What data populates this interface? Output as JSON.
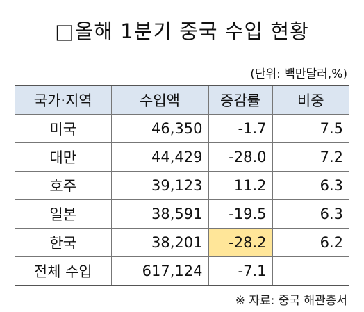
{
  "title": "□올해 1분기 중국 수입 현황",
  "unit_note": "(단위: 백만달러,%)",
  "table": {
    "header": [
      "국가·지역",
      "수입액",
      "증감률",
      "비중"
    ],
    "rows": [
      [
        "미국",
        "46,350",
        "-1.7",
        "7.5"
      ],
      [
        "대만",
        "44,429",
        "-28.0",
        "7.2"
      ],
      [
        "호주",
        "39,123",
        "11.2",
        "6.3"
      ],
      [
        "일본",
        "38,591",
        "-19.5",
        "6.3"
      ],
      [
        "한국",
        "38,201",
        "-28.2",
        "6.2"
      ],
      [
        "전체 수입",
        "617,124",
        "-7.1"
      ]
    ]
  },
  "source": "※ 자료: 중국 해관총서"
}
